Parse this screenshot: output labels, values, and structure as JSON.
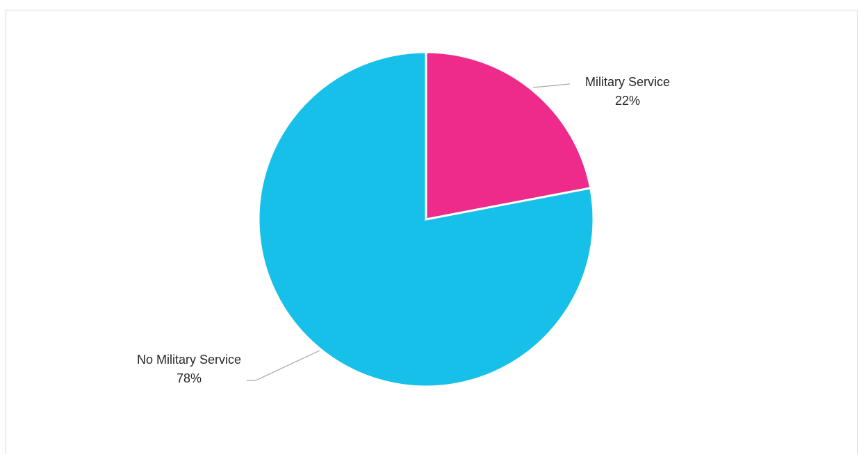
{
  "chart_data": {
    "type": "pie",
    "title": "",
    "slices": [
      {
        "label": "Military Service",
        "value": 22,
        "value_label": "22%",
        "color": "#EE2A8A"
      },
      {
        "label": "No Military Service",
        "value": 78,
        "value_label": "78%",
        "color": "#17C0E8"
      }
    ],
    "start_angle": "12 o'clock",
    "direction": "clockwise",
    "legend": "none",
    "data_labels": "outside with leader lines"
  }
}
